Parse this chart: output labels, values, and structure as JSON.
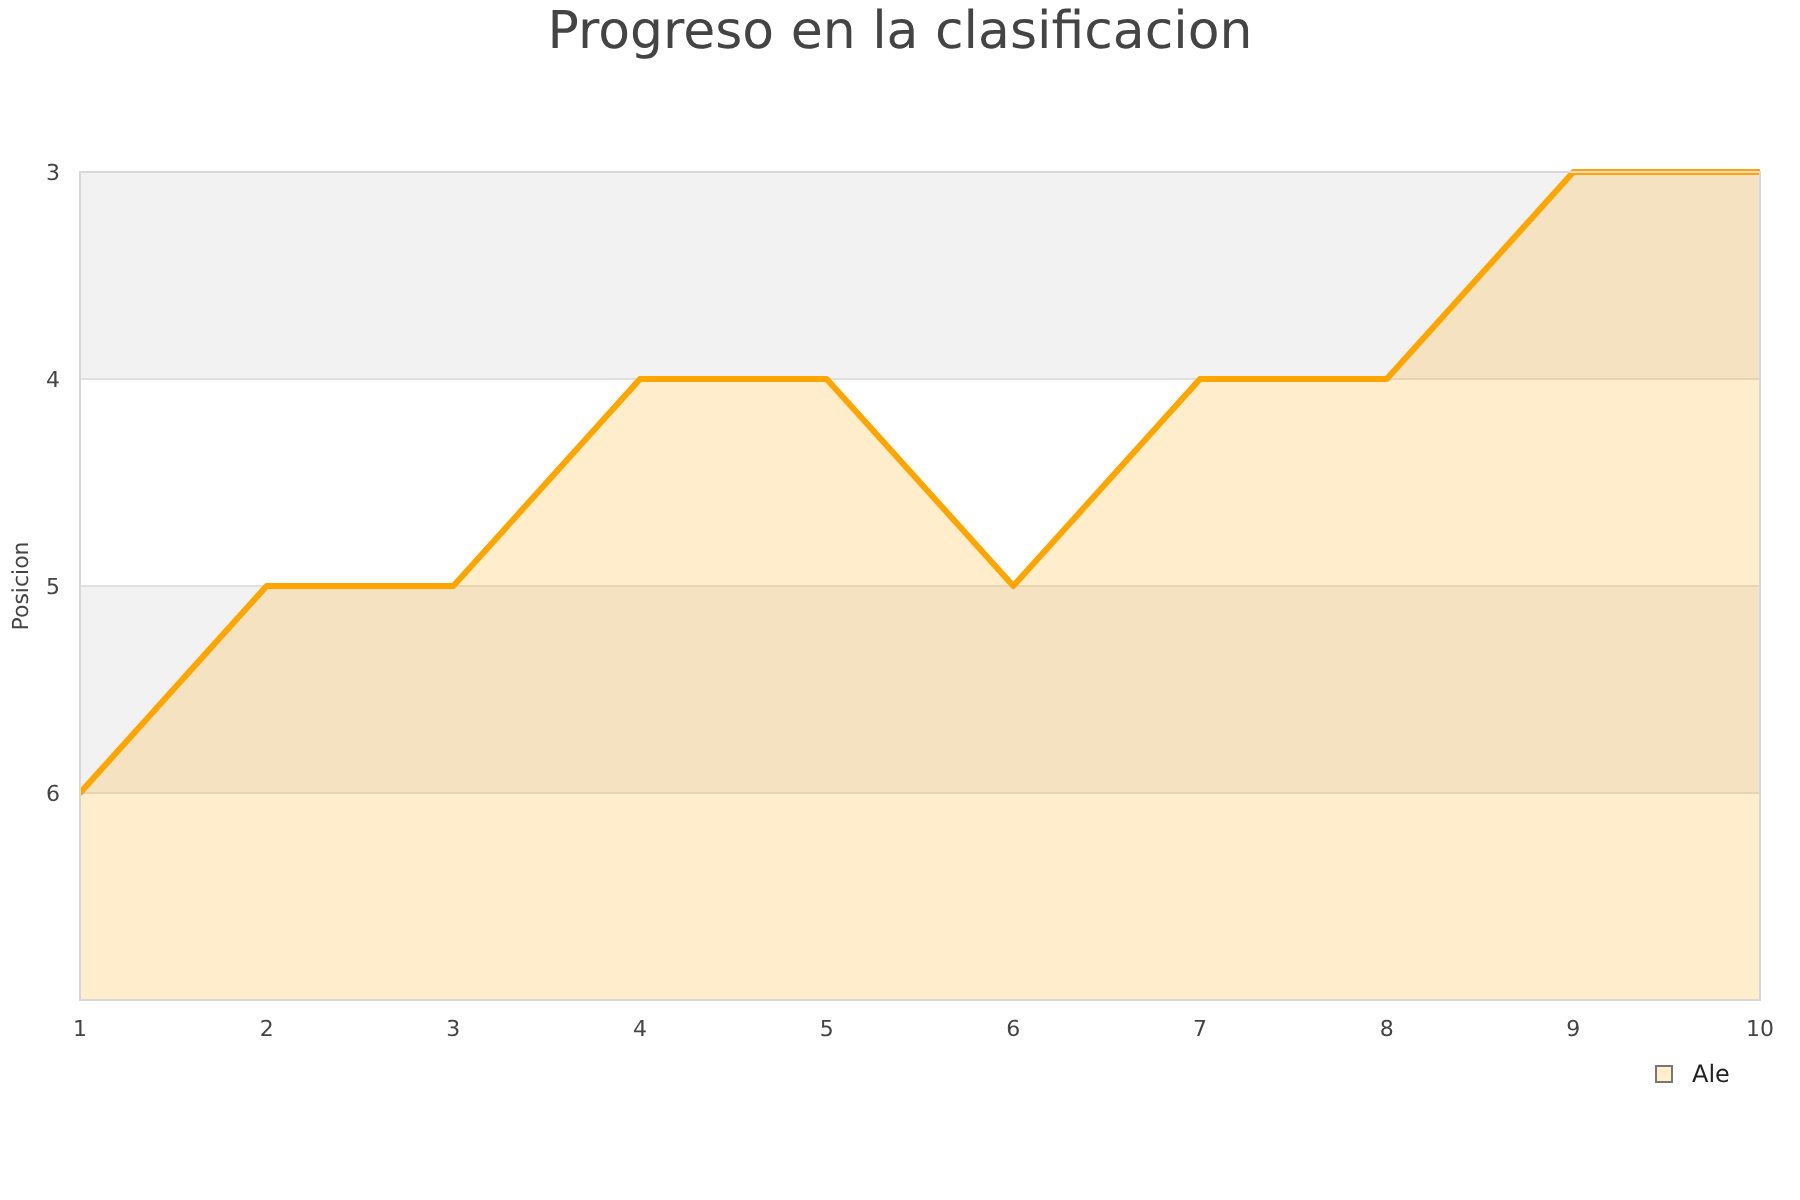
{
  "chart_data": {
    "type": "area",
    "title": "Progreso en la clasificacion",
    "ylabel": "Posicion",
    "x": [
      1,
      2,
      3,
      4,
      5,
      6,
      7,
      8,
      9,
      10
    ],
    "series": [
      {
        "name": "Ale",
        "color": "#ffa500",
        "values": [
          6,
          5,
          5,
          4,
          4,
          5,
          4,
          4,
          3,
          3
        ]
      }
    ],
    "xlim": [
      1,
      10
    ],
    "xticks": [
      1,
      2,
      3,
      4,
      5,
      6,
      7,
      8,
      9,
      10
    ],
    "ylim": [
      7,
      3
    ],
    "yticks": [
      3,
      4,
      5,
      6
    ],
    "bands": [
      {
        "axis": "y",
        "from": 3,
        "to": 4,
        "color": "#f2f2f2"
      },
      {
        "axis": "y",
        "from": 5,
        "to": 6,
        "color": "#f2f2f2"
      }
    ],
    "grid": "y",
    "legend": "bottom right",
    "marker": "none",
    "line_style": "solid"
  }
}
